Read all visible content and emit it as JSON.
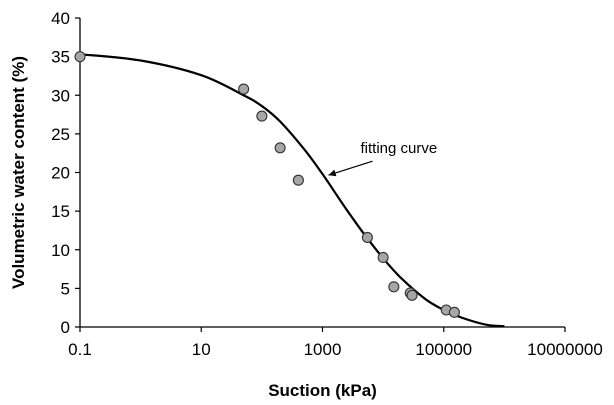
{
  "chart_data": {
    "type": "scatter",
    "xlabel": "Suction (kPa)",
    "ylabel": "Volumetric water content (%)",
    "xscale": "log",
    "xlim": [
      0.1,
      10000000
    ],
    "ylim": [
      0,
      40
    ],
    "x_ticks": [
      0.1,
      10,
      1000,
      100000,
      10000000
    ],
    "x_tick_labels": [
      "0.1",
      "10",
      "1000",
      "100000",
      "10000000"
    ],
    "y_ticks": [
      0,
      5,
      10,
      15,
      20,
      25,
      30,
      35,
      40
    ],
    "y_tick_labels": [
      "0",
      "5",
      "10",
      "15",
      "20",
      "25",
      "30",
      "35",
      "40"
    ],
    "grid": false,
    "legend": "none",
    "series": [
      {
        "type": "scatter",
        "marker_color": "#a6a6a6",
        "x": [
          0.1,
          50,
          100,
          200,
          400,
          5500,
          10000,
          15000,
          28000,
          30000,
          110000,
          150000
        ],
        "y": [
          35,
          30.8,
          27.3,
          23.2,
          19.0,
          11.6,
          9.0,
          5.2,
          4.4,
          4.1,
          2.2,
          1.9
        ]
      },
      {
        "type": "line",
        "line_color": "#000000",
        "x": [
          0.1,
          1,
          10,
          50,
          100,
          200,
          500,
          1000,
          2000,
          3000,
          5000,
          10000,
          20000,
          50000,
          100000,
          200000,
          500000,
          1000000
        ],
        "y": [
          35.3,
          34.5,
          32.6,
          30.0,
          28.6,
          26.6,
          23.0,
          19.8,
          16.3,
          14.3,
          11.9,
          8.9,
          6.3,
          3.6,
          2.2,
          1.2,
          0.3,
          0.1
        ]
      }
    ],
    "annotations": [
      {
        "text": "fitting curve",
        "points_to": [
          1000,
          19.4
        ]
      }
    ]
  }
}
